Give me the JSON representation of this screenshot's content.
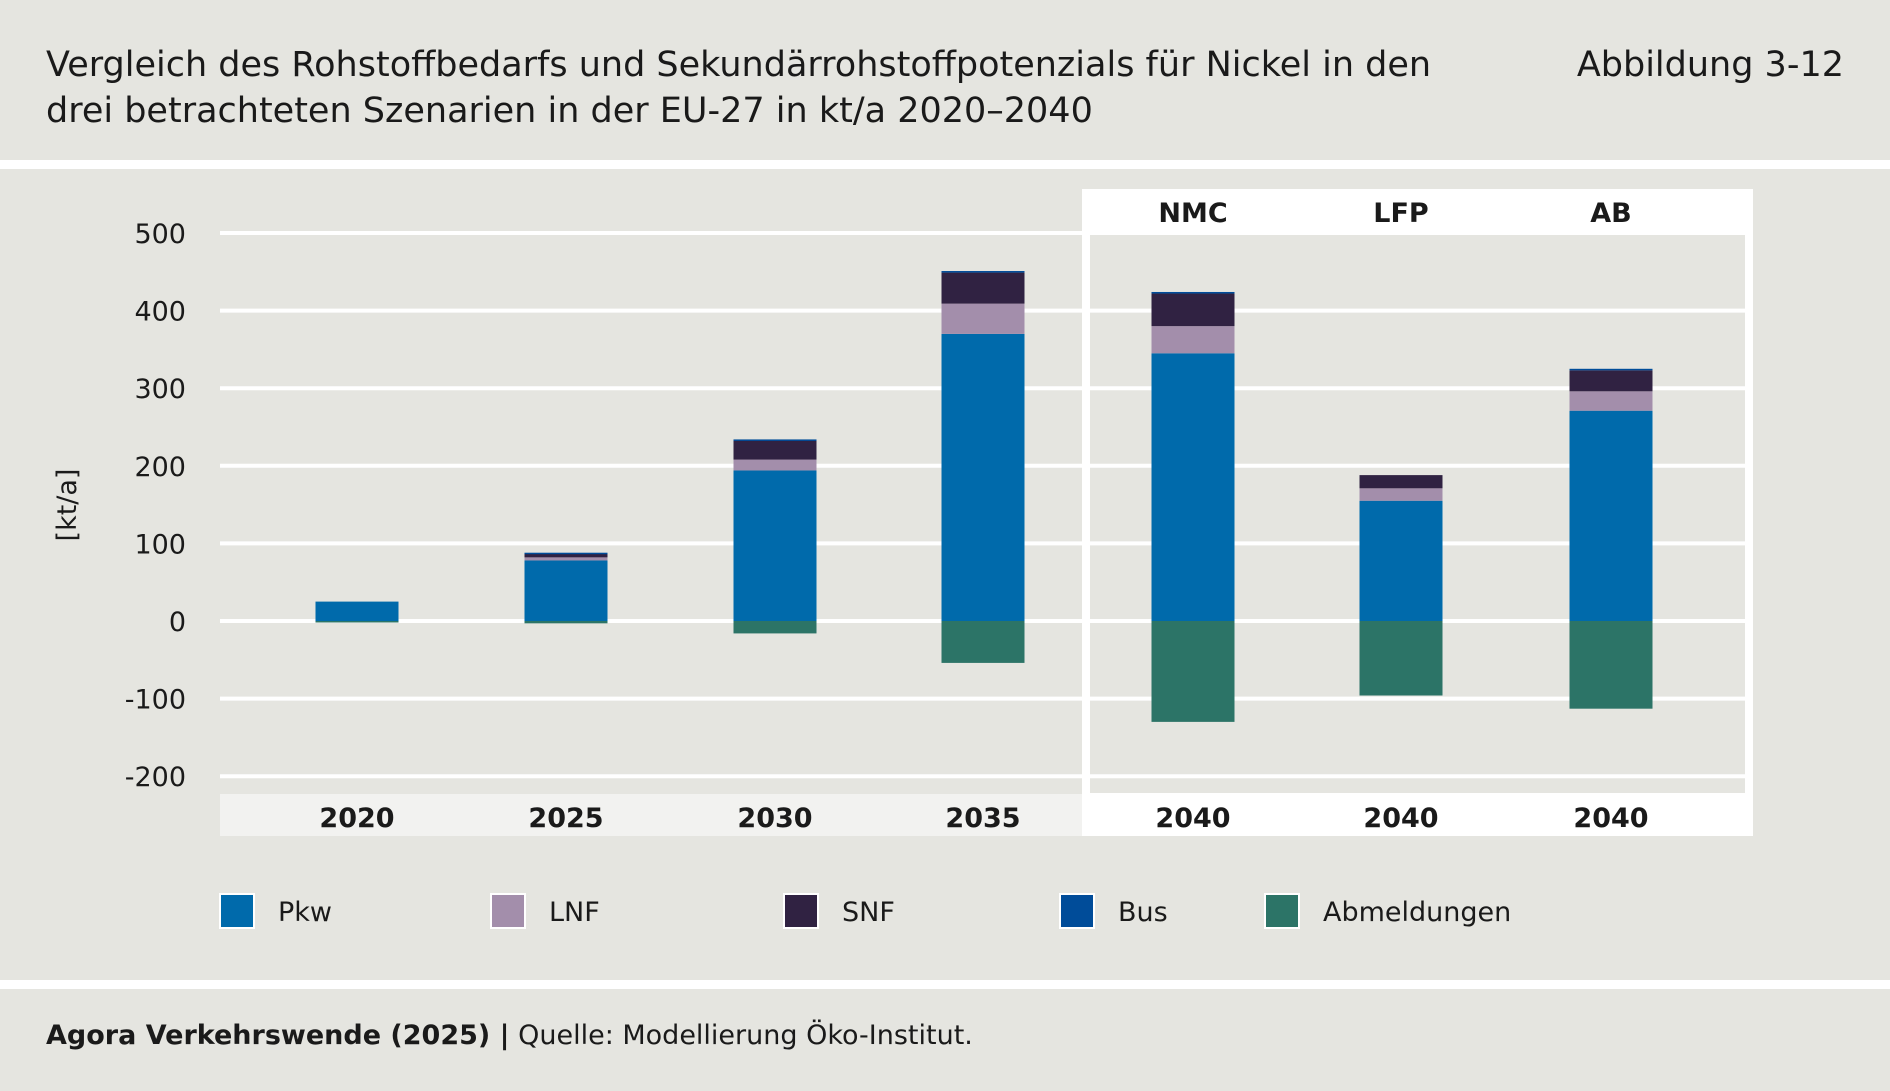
{
  "header": {
    "title": "Vergleich des Rohstoffbedarfs und Sekundärrohstoffpotenzials für Nickel in den drei betrachteten Szenarien in der EU-27 in kt/a 2020–2040",
    "figure_number": "Abbildung 3-12"
  },
  "chart_data": {
    "type": "bar",
    "stacked": true,
    "ylabel": "[kt/a]",
    "ylim": [
      -200,
      500
    ],
    "yticks": [
      500,
      400,
      300,
      200,
      100,
      0,
      -100,
      -200
    ],
    "ytick_labels": [
      "500",
      "400",
      "300",
      "200",
      "100",
      "0",
      "-100",
      "-200"
    ],
    "categories": [
      "2020",
      "2025",
      "2030",
      "2035",
      "2040",
      "2040",
      "2040"
    ],
    "scenario_labels": [
      "NMC",
      "LFP",
      "AB"
    ],
    "series": [
      {
        "name": "Pkw",
        "color": "#006aab",
        "values": [
          25,
          78,
          194,
          370,
          345,
          155,
          271
        ]
      },
      {
        "name": "LNF",
        "color": "#a38eab",
        "values": [
          0,
          4,
          14,
          39,
          35,
          16,
          25
        ]
      },
      {
        "name": "SNF",
        "color": "#302242",
        "values": [
          0,
          5,
          25,
          40,
          42,
          17,
          27
        ]
      },
      {
        "name": "Bus",
        "color": "#004c99",
        "values": [
          0,
          1,
          1,
          2,
          2,
          0,
          2
        ]
      },
      {
        "name": "Abmeldungen",
        "color": "#2c7467",
        "values": [
          -1,
          -3,
          -16,
          -54,
          -130,
          -96,
          -113
        ]
      }
    ],
    "grid": true,
    "legend_position": "bottom"
  },
  "footer": {
    "source_bold": "Agora Verkehrswende (2025) |",
    "source": " Quelle: Modellierung Öko-Institut."
  }
}
